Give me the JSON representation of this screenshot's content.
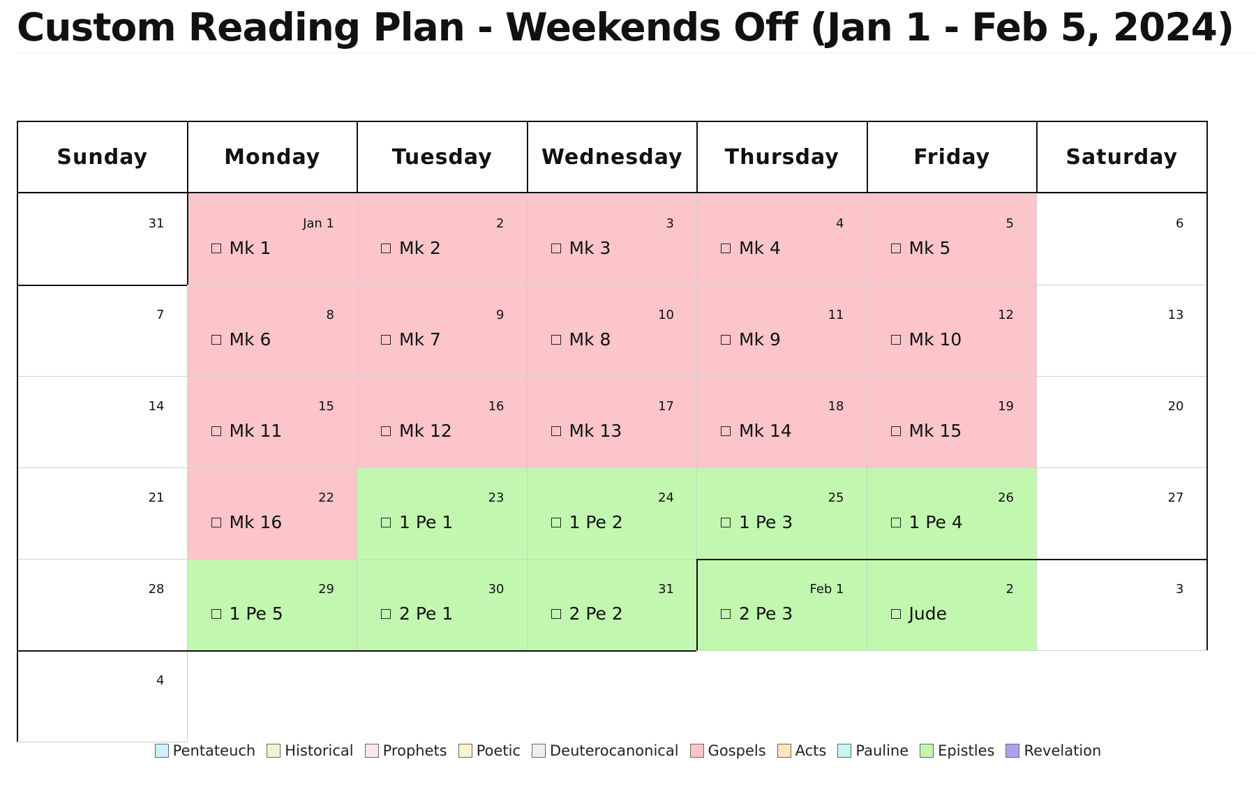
{
  "title": "Custom Reading Plan - Weekends Off (Jan 1 - Feb 5, 2024)",
  "colors": {
    "Gospels": "#fbc5ca",
    "Epistles": "#c2f7b0",
    "none": "#ffffff"
  },
  "weekdays": [
    "Sunday",
    "Monday",
    "Tuesday",
    "Wednesday",
    "Thursday",
    "Friday",
    "Saturday"
  ],
  "weeks": [
    [
      {
        "date": "31",
        "reading": "",
        "category": "none"
      },
      {
        "date": "Jan 1",
        "reading": "Mk 1",
        "category": "Gospels"
      },
      {
        "date": "2",
        "reading": "Mk 2",
        "category": "Gospels"
      },
      {
        "date": "3",
        "reading": "Mk 3",
        "category": "Gospels"
      },
      {
        "date": "4",
        "reading": "Mk 4",
        "category": "Gospels"
      },
      {
        "date": "5",
        "reading": "Mk 5",
        "category": "Gospels"
      },
      {
        "date": "6",
        "reading": "",
        "category": "none"
      }
    ],
    [
      {
        "date": "7",
        "reading": "",
        "category": "none"
      },
      {
        "date": "8",
        "reading": "Mk 6",
        "category": "Gospels"
      },
      {
        "date": "9",
        "reading": "Mk 7",
        "category": "Gospels"
      },
      {
        "date": "10",
        "reading": "Mk 8",
        "category": "Gospels"
      },
      {
        "date": "11",
        "reading": "Mk 9",
        "category": "Gospels"
      },
      {
        "date": "12",
        "reading": "Mk 10",
        "category": "Gospels"
      },
      {
        "date": "13",
        "reading": "",
        "category": "none"
      }
    ],
    [
      {
        "date": "14",
        "reading": "",
        "category": "none"
      },
      {
        "date": "15",
        "reading": "Mk 11",
        "category": "Gospels"
      },
      {
        "date": "16",
        "reading": "Mk 12",
        "category": "Gospels"
      },
      {
        "date": "17",
        "reading": "Mk 13",
        "category": "Gospels"
      },
      {
        "date": "18",
        "reading": "Mk 14",
        "category": "Gospels"
      },
      {
        "date": "19",
        "reading": "Mk 15",
        "category": "Gospels"
      },
      {
        "date": "20",
        "reading": "",
        "category": "none"
      }
    ],
    [
      {
        "date": "21",
        "reading": "",
        "category": "none"
      },
      {
        "date": "22",
        "reading": "Mk 16",
        "category": "Gospels"
      },
      {
        "date": "23",
        "reading": "1 Pe 1",
        "category": "Epistles"
      },
      {
        "date": "24",
        "reading": "1 Pe 2",
        "category": "Epistles"
      },
      {
        "date": "25",
        "reading": "1 Pe 3",
        "category": "Epistles"
      },
      {
        "date": "26",
        "reading": "1 Pe 4",
        "category": "Epistles"
      },
      {
        "date": "27",
        "reading": "",
        "category": "none"
      }
    ],
    [
      {
        "date": "28",
        "reading": "",
        "category": "none"
      },
      {
        "date": "29",
        "reading": "1 Pe 5",
        "category": "Epistles"
      },
      {
        "date": "30",
        "reading": "2 Pe 1",
        "category": "Epistles"
      },
      {
        "date": "31",
        "reading": "2 Pe 2",
        "category": "Epistles"
      },
      {
        "date": "Feb 1",
        "reading": "2 Pe 3",
        "category": "Epistles"
      },
      {
        "date": "2",
        "reading": "Jude",
        "category": "Epistles"
      },
      {
        "date": "3",
        "reading": "",
        "category": "none"
      }
    ],
    [
      {
        "date": "4",
        "reading": "",
        "category": "none"
      }
    ]
  ],
  "legend": [
    {
      "label": "Pentateuch",
      "color": "#cdf0fb"
    },
    {
      "label": "Historical",
      "color": "#e8f7cf"
    },
    {
      "label": "Prophets",
      "color": "#fbe6f3"
    },
    {
      "label": "Poetic",
      "color": "#fbf3cd"
    },
    {
      "label": "Deuterocanonical",
      "color": "#efefef"
    },
    {
      "label": "Gospels",
      "color": "#fbc5ca"
    },
    {
      "label": "Acts",
      "color": "#fbe5bb"
    },
    {
      "label": "Pauline",
      "color": "#c6f7f3"
    },
    {
      "label": "Epistles",
      "color": "#c2f7b0"
    },
    {
      "label": "Revelation",
      "color": "#a9a3ef"
    }
  ]
}
